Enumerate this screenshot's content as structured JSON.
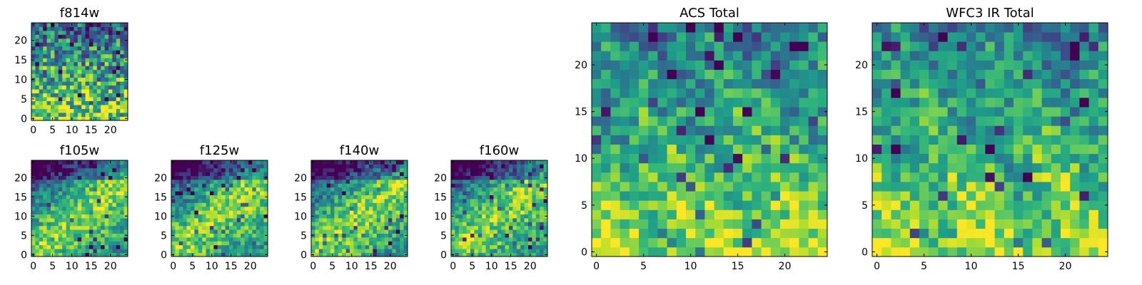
{
  "chart_data": [
    {
      "type": "heatmap",
      "title": "f814w",
      "grid_size": 25,
      "xticks": [
        0,
        5,
        10,
        15,
        20
      ],
      "yticks": [
        0,
        5,
        10,
        15,
        20
      ],
      "xlim": [
        0,
        24
      ],
      "ylim": [
        0,
        24
      ],
      "colormap": "viridis",
      "pattern": "noisy",
      "values": []
    },
    {
      "type": "heatmap",
      "title": "f105w",
      "grid_size": 25,
      "xticks": [
        0,
        5,
        10,
        15,
        20
      ],
      "yticks": [
        0,
        5,
        10,
        15,
        20
      ],
      "xlim": [
        0,
        24
      ],
      "ylim": [
        0,
        24
      ],
      "colormap": "viridis",
      "pattern": "diagonal",
      "values": []
    },
    {
      "type": "heatmap",
      "title": "f125w",
      "grid_size": 25,
      "xticks": [
        0,
        5,
        10,
        15,
        20
      ],
      "yticks": [
        0,
        5,
        10,
        15,
        20
      ],
      "xlim": [
        0,
        24
      ],
      "ylim": [
        0,
        24
      ],
      "colormap": "viridis",
      "pattern": "diagonal",
      "values": []
    },
    {
      "type": "heatmap",
      "title": "f140w",
      "grid_size": 25,
      "xticks": [
        0,
        5,
        10,
        15,
        20
      ],
      "yticks": [
        0,
        5,
        10,
        15,
        20
      ],
      "xlim": [
        0,
        24
      ],
      "ylim": [
        0,
        24
      ],
      "colormap": "viridis",
      "pattern": "diagonal",
      "values": []
    },
    {
      "type": "heatmap",
      "title": "f160w",
      "grid_size": 25,
      "xticks": [
        0,
        5,
        10,
        15,
        20
      ],
      "yticks": [
        0,
        5,
        10,
        15,
        20
      ],
      "xlim": [
        0,
        24
      ],
      "ylim": [
        0,
        24
      ],
      "colormap": "viridis",
      "pattern": "diagonal",
      "values": []
    },
    {
      "type": "heatmap",
      "title": "ACS Total",
      "grid_size": 25,
      "xticks": [
        0,
        5,
        10,
        15,
        20
      ],
      "yticks": [
        0,
        5,
        10,
        15,
        20
      ],
      "xlim": [
        0,
        24
      ],
      "ylim": [
        0,
        24
      ],
      "colormap": "viridis",
      "pattern": "blocky",
      "values": []
    },
    {
      "type": "heatmap",
      "title": "WFC3 IR Total",
      "grid_size": 25,
      "xticks": [
        0,
        5,
        10,
        15,
        20
      ],
      "yticks": [
        0,
        5,
        10,
        15,
        20
      ],
      "xlim": [
        0,
        24
      ],
      "ylim": [
        0,
        24
      ],
      "colormap": "viridis",
      "pattern": "blocky",
      "values": []
    }
  ]
}
